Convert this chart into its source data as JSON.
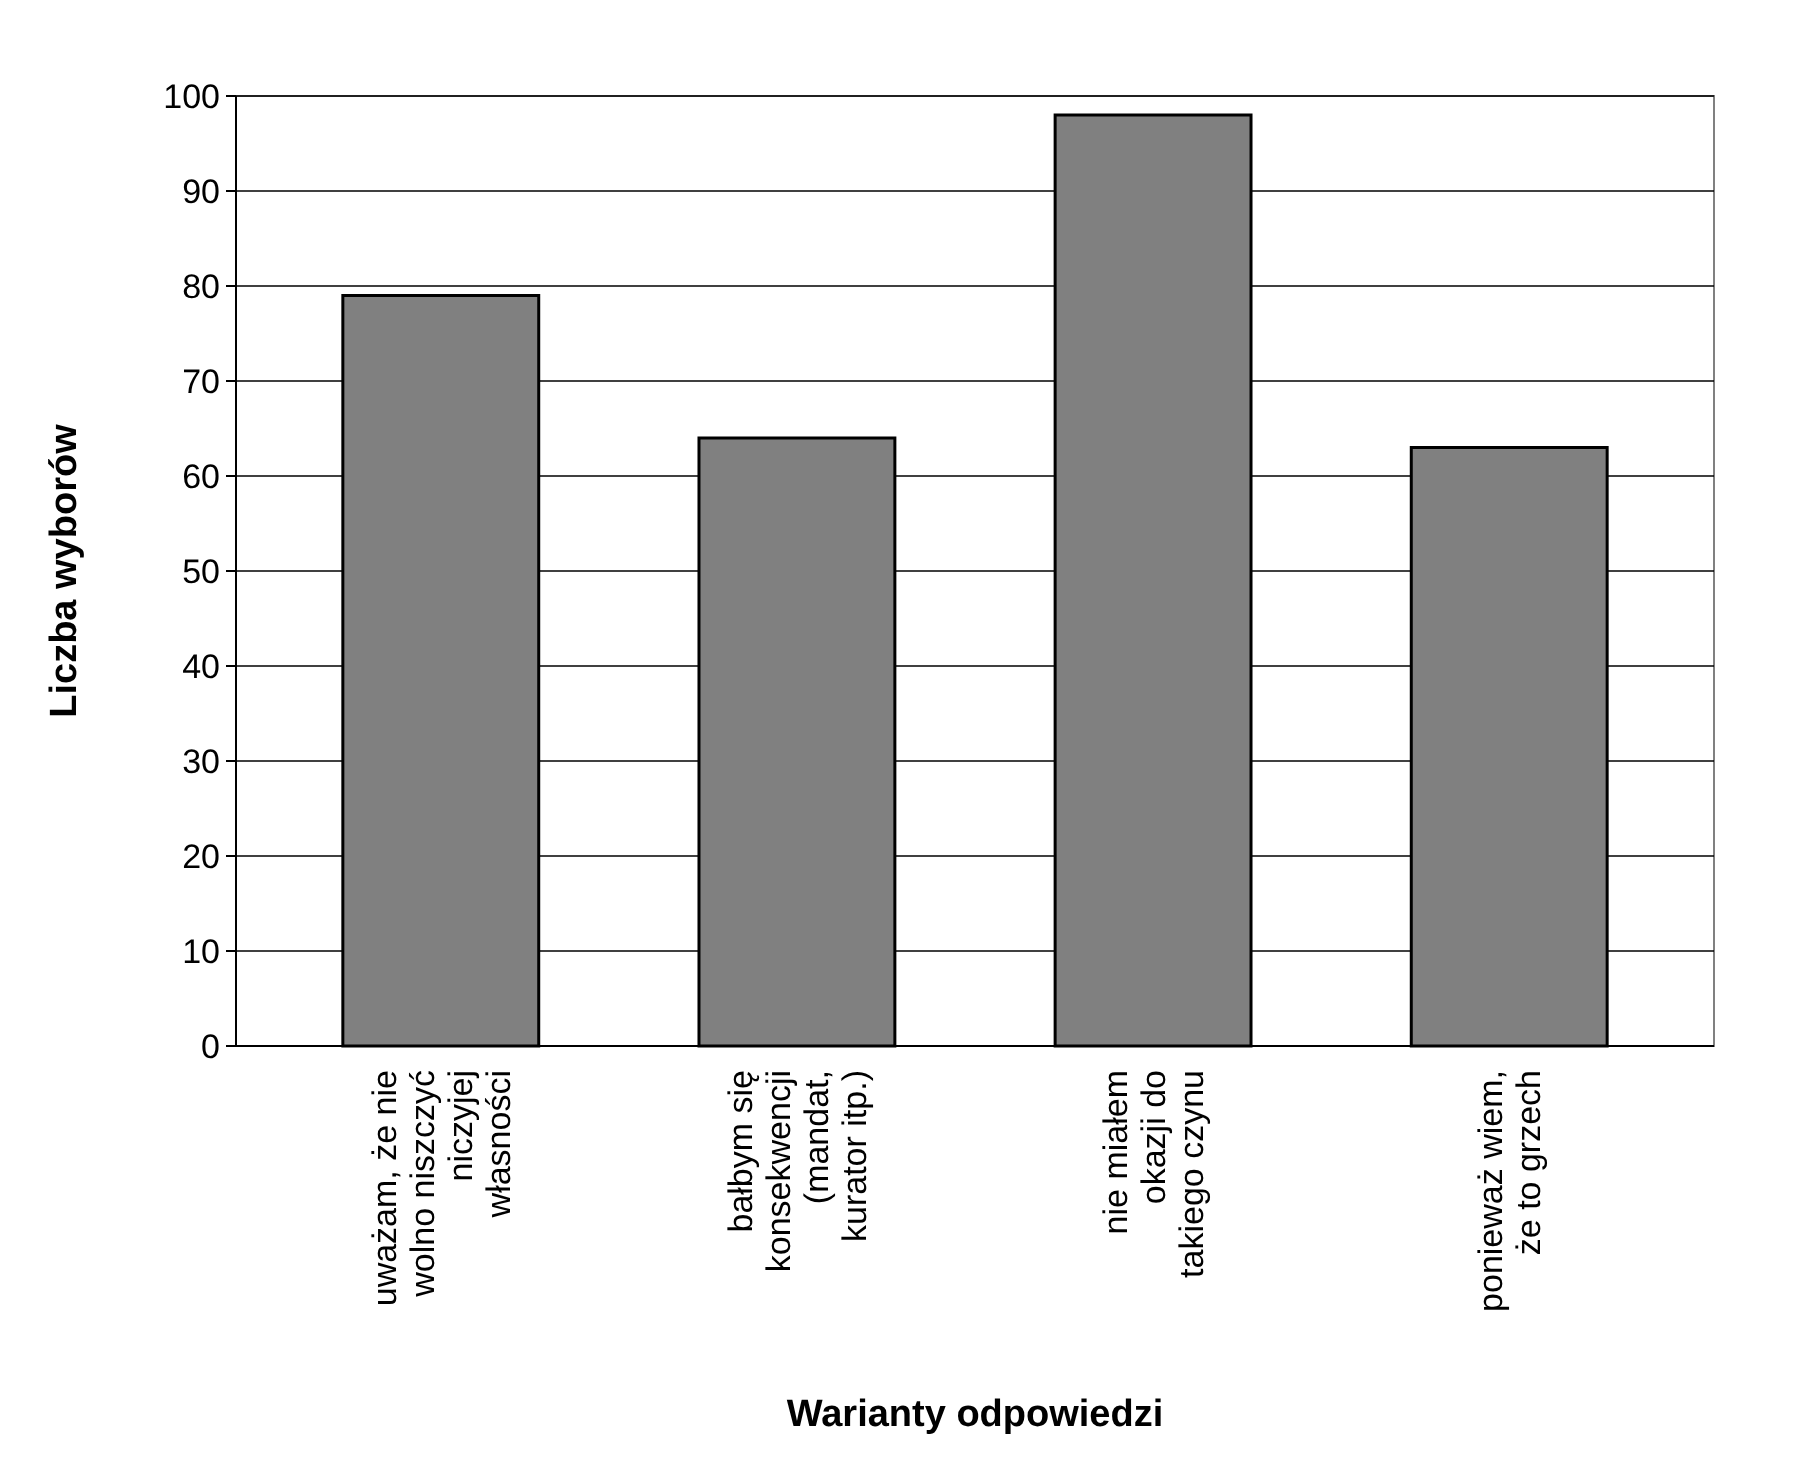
{
  "chart_data": {
    "type": "bar",
    "xlabel": "Warianty odpowiedzi",
    "ylabel": "Liczba wyborów",
    "categories": [
      "uważam, że nie wolno niszczyć niczyjej własności",
      "bałbym się konsekwencji (mandat, kurator itp.)",
      "nie miałem okazji do takiego czynu",
      "ponieważ wiem, że to grzech"
    ],
    "values": [
      79,
      64,
      98,
      63
    ],
    "color": "#808080",
    "ylim": [
      0,
      100
    ],
    "yticks": [
      0,
      10,
      20,
      30,
      40,
      50,
      60,
      70,
      80,
      90,
      100
    ],
    "grid": "y"
  }
}
